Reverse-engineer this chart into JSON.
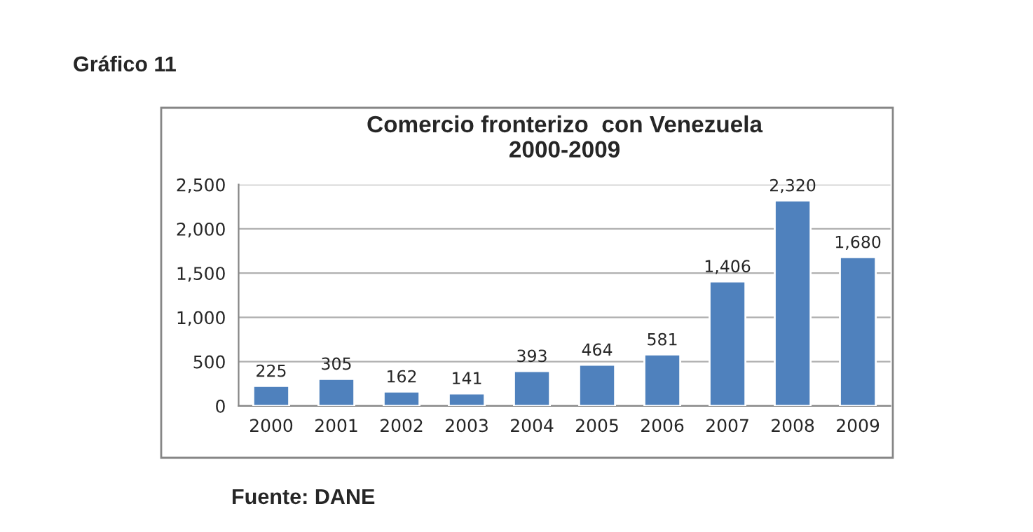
{
  "chart_data": {
    "type": "bar",
    "title": "Comercio fronterizo  con Venezuela\n2000-2009",
    "categories": [
      "2000",
      "2001",
      "2002",
      "2003",
      "2004",
      "2005",
      "2006",
      "2007",
      "2008",
      "2009"
    ],
    "values": [
      225,
      305,
      162,
      141,
      393,
      464,
      581,
      1406,
      2320,
      1680
    ],
    "color": "#4f81bd",
    "value_labels": [
      "225",
      "305",
      "162",
      "141",
      "393",
      "464",
      "581",
      "1,406",
      "2,320",
      "1,680"
    ],
    "ylim": [
      0,
      2500
    ],
    "yticks": [
      {
        "value": 0,
        "label": "0"
      },
      {
        "value": 500,
        "label": "500"
      },
      {
        "value": 1000,
        "label": "1,000"
      },
      {
        "value": 1500,
        "label": "1,500"
      },
      {
        "value": 2000,
        "label": "2,000"
      },
      {
        "value": 2500,
        "label": "2,500"
      }
    ],
    "grid": "y",
    "legend": false,
    "annotations": [
      "Gráfico 11",
      "Fuente: DANE"
    ]
  }
}
